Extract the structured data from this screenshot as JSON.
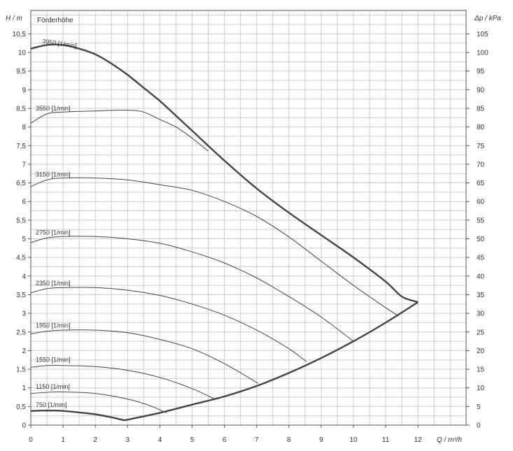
{
  "chart_data": {
    "type": "line",
    "title": "Förderhöhe",
    "xlabel": "Q / m³/h",
    "ylabel": "H / m",
    "y2label": "Δp / kPa",
    "xlim": [
      0,
      13
    ],
    "ylim": [
      0,
      11
    ],
    "y2lim": [
      0,
      110
    ],
    "x_ticks": [
      "0",
      "1",
      "2",
      "3",
      "4",
      "5",
      "6",
      "7",
      "8",
      "9",
      "10",
      "11",
      "12"
    ],
    "y_ticks": [
      "0",
      "0,5",
      "1",
      "1,5",
      "2",
      "2,5",
      "3",
      "3,5",
      "4",
      "4,5",
      "5",
      "5,5",
      "6",
      "6,5",
      "7",
      "7,5",
      "8",
      "8,5",
      "9",
      "9,5",
      "10",
      "10,5"
    ],
    "y2_ticks": [
      "0",
      "5",
      "10",
      "15",
      "20",
      "25",
      "30",
      "35",
      "40",
      "45",
      "50",
      "55",
      "60",
      "65",
      "70",
      "75",
      "80",
      "85",
      "90",
      "95",
      "100",
      "105"
    ],
    "grid": true,
    "series": [
      {
        "name": "3950 [1/min]",
        "bold": true,
        "x": [
          0,
          0.5,
          1,
          1.5,
          2,
          2.5,
          3,
          3.5,
          4,
          4.5,
          5,
          6,
          7,
          8,
          9,
          10,
          11,
          11.5,
          12
        ],
        "y": [
          10.1,
          10.2,
          10.2,
          10.1,
          9.95,
          9.7,
          9.4,
          9.05,
          8.7,
          8.3,
          7.9,
          7.1,
          6.35,
          5.7,
          5.1,
          4.5,
          3.85,
          3.45,
          3.3
        ]
      },
      {
        "name": "3550 [1/min]",
        "x": [
          0,
          0.5,
          1,
          2,
          3,
          3.5,
          4,
          4.5,
          5,
          5.5
        ],
        "y": [
          8.1,
          8.35,
          8.4,
          8.43,
          8.45,
          8.4,
          8.2,
          8.0,
          7.7,
          7.35
        ]
      },
      {
        "name": "3150 [1/min]",
        "x": [
          0,
          0.5,
          1,
          2,
          3,
          4,
          5,
          6,
          7,
          8,
          9,
          10,
          11,
          11.4
        ],
        "y": [
          6.4,
          6.58,
          6.63,
          6.63,
          6.58,
          6.45,
          6.3,
          6.0,
          5.6,
          5.05,
          4.4,
          3.75,
          3.15,
          2.93
        ]
      },
      {
        "name": "2750 [1/min]",
        "x": [
          0,
          0.5,
          1,
          2,
          3,
          4,
          5,
          6,
          7,
          8,
          9,
          10
        ],
        "y": [
          4.9,
          5.02,
          5.06,
          5.06,
          5.0,
          4.88,
          4.65,
          4.35,
          3.95,
          3.45,
          2.9,
          2.25
        ]
      },
      {
        "name": "2350 [1/min]",
        "x": [
          0,
          0.5,
          1,
          2,
          3,
          4,
          5,
          6,
          7,
          8,
          8.55
        ],
        "y": [
          3.55,
          3.66,
          3.69,
          3.69,
          3.62,
          3.48,
          3.25,
          2.95,
          2.55,
          2.05,
          1.7
        ]
      },
      {
        "name": "1950 [1/min]",
        "x": [
          0,
          0.5,
          1,
          2,
          3,
          4,
          5,
          6,
          7.05
        ],
        "y": [
          2.45,
          2.52,
          2.55,
          2.55,
          2.48,
          2.3,
          2.05,
          1.65,
          1.12
        ]
      },
      {
        "name": "1550 [1/min]",
        "x": [
          0,
          0.5,
          1,
          2,
          3,
          4,
          5,
          5.7
        ],
        "y": [
          1.55,
          1.6,
          1.6,
          1.57,
          1.47,
          1.28,
          0.98,
          0.7
        ]
      },
      {
        "name": "1150 [1/min]",
        "x": [
          0,
          0.5,
          1,
          2,
          3,
          3.7,
          4.2
        ],
        "y": [
          0.85,
          0.88,
          0.89,
          0.85,
          0.7,
          0.52,
          0.33
        ]
      },
      {
        "name": "750 [1/min]",
        "bold": true,
        "x": [
          0,
          0.3,
          0.7,
          1,
          1.5,
          2,
          2.5,
          2.9
        ],
        "y": [
          0.38,
          0.39,
          0.39,
          0.38,
          0.34,
          0.29,
          0.21,
          0.13
        ]
      },
      {
        "name": "",
        "bold": true,
        "x": [
          2.9,
          4,
          5,
          6,
          7,
          8,
          9,
          10,
          11,
          12
        ],
        "y": [
          0.13,
          0.33,
          0.55,
          0.77,
          1.05,
          1.4,
          1.8,
          2.25,
          2.75,
          3.3
        ]
      }
    ]
  }
}
